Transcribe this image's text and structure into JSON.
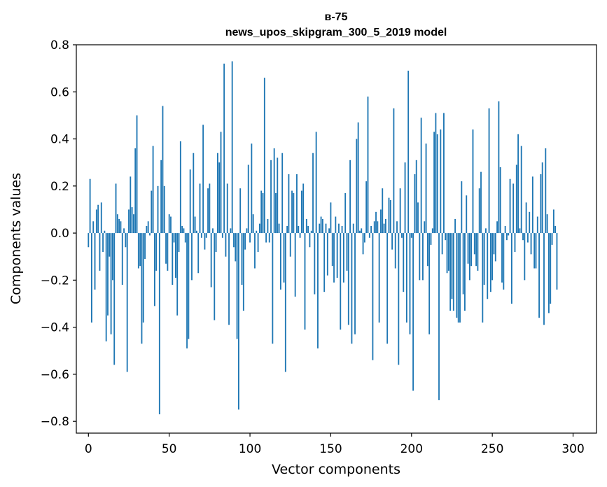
{
  "chart_data": {
    "type": "bar",
    "title": "в-75",
    "subtitle": "news_upos_skipgram_300_5_2019 model",
    "xlabel": "Vector components",
    "ylabel": "Components values",
    "xlim": [
      -7.5,
      314.5
    ],
    "ylim": [
      -0.85,
      0.8
    ],
    "xticks": [
      0,
      50,
      100,
      150,
      200,
      250,
      300
    ],
    "xtick_labels": [
      "0",
      "50",
      "100",
      "150",
      "200",
      "250",
      "300"
    ],
    "yticks": [
      -0.8,
      -0.6,
      -0.4,
      -0.2,
      0.0,
      0.2,
      0.4,
      0.6,
      0.8
    ],
    "ytick_labels": [
      "−0.8",
      "−0.6",
      "−0.4",
      "−0.2",
      "0.0",
      "0.2",
      "0.4",
      "0.6",
      "0.8"
    ],
    "grid": false,
    "bar_color": "#1f77b4",
    "values": [
      -0.06,
      0.23,
      -0.38,
      0.05,
      -0.24,
      0.1,
      0.12,
      -0.16,
      0.13,
      -0.08,
      0.01,
      -0.46,
      -0.35,
      -0.1,
      -0.43,
      -0.2,
      -0.56,
      0.21,
      0.08,
      0.06,
      0.05,
      -0.22,
      0.02,
      -0.06,
      -0.59,
      0.1,
      0.24,
      0.11,
      0.08,
      0.36,
      0.5,
      -0.15,
      -0.14,
      -0.47,
      -0.38,
      -0.11,
      0.03,
      0.05,
      -0.01,
      0.18,
      0.37,
      -0.31,
      -0.16,
      0.2,
      -0.77,
      0.31,
      0.54,
      0.2,
      -0.13,
      -0.16,
      0.08,
      0.07,
      -0.22,
      -0.04,
      -0.19,
      -0.35,
      -0.08,
      0.39,
      0.03,
      0.02,
      -0.04,
      -0.49,
      -0.45,
      0.27,
      -0.2,
      0.34,
      0.07,
      0.01,
      -0.17,
      0.21,
      -0.02,
      0.46,
      -0.07,
      -0.02,
      0.19,
      0.21,
      -0.23,
      0.02,
      -0.37,
      -0.08,
      0.34,
      0.3,
      0.43,
      -0.02,
      0.72,
      -0.1,
      0.21,
      -0.39,
      0.02,
      0.73,
      -0.06,
      -0.12,
      -0.45,
      -0.75,
      0.19,
      -0.22,
      -0.33,
      -0.07,
      0.02,
      0.29,
      -0.04,
      0.38,
      0.08,
      -0.15,
      0.01,
      -0.08,
      0.04,
      0.18,
      0.17,
      0.66,
      -0.04,
      0.06,
      -0.04,
      0.31,
      -0.47,
      0.36,
      0.17,
      0.32,
      0.04,
      -0.24,
      0.34,
      -0.21,
      -0.59,
      0.03,
      0.25,
      -0.1,
      0.18,
      0.17,
      -0.27,
      0.25,
      0.03,
      -0.02,
      0.18,
      0.21,
      -0.41,
      0.06,
      0.03,
      -0.06,
      0.01,
      0.34,
      -0.26,
      0.43,
      -0.49,
      0.04,
      0.07,
      0.06,
      -0.25,
      0.04,
      -0.18,
      0.02,
      0.13,
      -0.14,
      -0.21,
      0.07,
      -0.19,
      0.04,
      -0.41,
      0.03,
      -0.21,
      0.17,
      -0.16,
      -0.39,
      0.31,
      -0.47,
      0.04,
      -0.43,
      0.4,
      0.47,
      0.01,
      0.02,
      -0.09,
      -0.04,
      0.22,
      0.58,
      -0.02,
      0.03,
      -0.54,
      0.05,
      0.09,
      0.05,
      -0.38,
      0.1,
      0.19,
      0.04,
      0.06,
      -0.47,
      0.15,
      0.14,
      -0.07,
      0.53,
      -0.15,
      0.05,
      -0.56,
      0.19,
      -0.02,
      -0.25,
      0.3,
      -0.38,
      0.69,
      -0.43,
      -0.02,
      -0.67,
      0.25,
      0.31,
      0.13,
      -0.2,
      0.49,
      -0.2,
      0.05,
      0.38,
      -0.14,
      -0.43,
      -0.05,
      0.02,
      0.43,
      0.51,
      0.42,
      -0.71,
      0.44,
      -0.09,
      0.51,
      -0.03,
      -0.17,
      -0.16,
      -0.33,
      -0.28,
      -0.33,
      0.06,
      -0.36,
      -0.38,
      -0.38,
      0.22,
      -0.26,
      -0.33,
      0.16,
      -0.13,
      -0.2,
      -0.14,
      0.44,
      -0.09,
      -0.14,
      -0.16,
      0.19,
      0.26,
      -0.38,
      -0.22,
      0.02,
      -0.28,
      0.53,
      -0.25,
      -0.2,
      -0.09,
      -0.12,
      0.05,
      0.56,
      0.28,
      -0.21,
      -0.24,
      0.03,
      -0.03,
      -0.01,
      0.23,
      -0.3,
      0.21,
      -0.08,
      0.29,
      0.42,
      0.02,
      0.37,
      -0.03,
      -0.2,
      0.13,
      -0.04,
      0.09,
      -0.09,
      0.24,
      -0.15,
      -0.15,
      0.07,
      -0.36,
      0.25,
      0.3,
      -0.39,
      0.36,
      0.08,
      -0.34,
      -0.3,
      -0.05,
      0.1,
      0.03,
      -0.24
    ]
  }
}
